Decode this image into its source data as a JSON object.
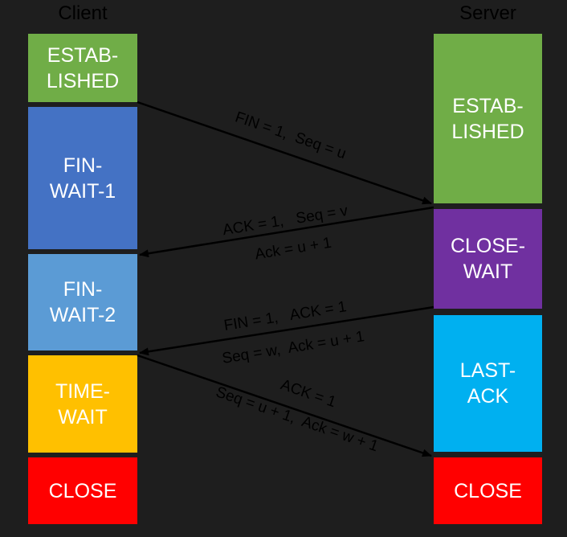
{
  "client": {
    "title": "Client",
    "states": [
      {
        "label": "ESTAB-\nLISHED",
        "color": "#70ad47"
      },
      {
        "label": "FIN-\nWAIT-1",
        "color": "#4472c4"
      },
      {
        "label": "FIN-\nWAIT-2",
        "color": "#5b9bd5"
      },
      {
        "label": "TIME-\nWAIT",
        "color": "#ffc000"
      },
      {
        "label": "CLOSE",
        "color": "#ff0000"
      }
    ]
  },
  "server": {
    "title": "Server",
    "states": [
      {
        "label": "ESTAB-\nLISHED",
        "color": "#70ad47"
      },
      {
        "label": "CLOSE-\nWAIT",
        "color": "#7030a0"
      },
      {
        "label": "LAST-\nACK",
        "color": "#00b0f0"
      },
      {
        "label": "CLOSE",
        "color": "#ff0000"
      }
    ]
  },
  "messages": [
    {
      "line1": "FIN = 1,  Seq = u",
      "line2": ""
    },
    {
      "line1": "ACK = 1,   Seq = v",
      "line2": "Ack = u + 1"
    },
    {
      "line1": "FIN = 1,   ACK = 1",
      "line2": "Seq = w,  Ack = u + 1"
    },
    {
      "line1": "ACK = 1",
      "line2": "Seq = u + 1,  Ack = w + 1"
    }
  ]
}
